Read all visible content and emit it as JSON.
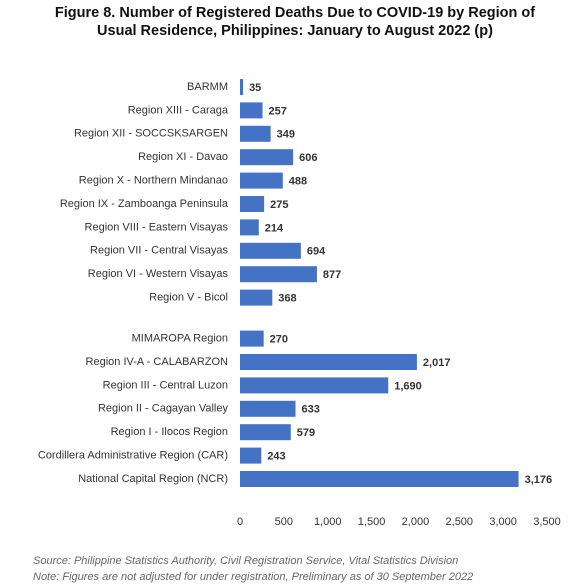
{
  "chart_data": {
    "type": "barh",
    "title": "Figure 8. Number of Registered Deaths Due to COVID-19 by Region of Usual Residence, Philippines: January to August 2022 (p)",
    "categories": [
      "BARMM",
      "Region XIII - Caraga",
      "Region XII - SOCCSKSARGEN",
      "Region XI - Davao",
      "Region X - Northern Mindanao",
      "Region IX - Zamboanga Peninsula",
      "Region VIII - Eastern Visayas",
      "Region VII - Central Visayas",
      "Region VI - Western Visayas",
      "Region V - Bicol",
      "MIMAROPA Region",
      "Region IV-A - CALABARZON",
      "Region III - Central Luzon",
      "Region II - Cagayan Valley",
      "Region I - Ilocos Region",
      "Cordillera Administrative Region (CAR)",
      "National Capital Region (NCR)"
    ],
    "values": [
      35,
      257,
      349,
      606,
      488,
      275,
      214,
      694,
      877,
      368,
      270,
      2017,
      1690,
      633,
      579,
      243,
      3176
    ],
    "value_labels": [
      "35",
      "257",
      "349",
      "606",
      "488",
      "275",
      "214",
      "694",
      "877",
      "368",
      "270",
      "2,017",
      "1,690",
      "633",
      "579",
      "243",
      "3,176"
    ],
    "value_label_colors": [
      "#222222",
      "#222222",
      "#222222",
      "#222222",
      "#222222",
      "#222222",
      "#222222",
      "#222222",
      "#222222",
      "#e00000",
      "#222222",
      "#222222",
      "#222222",
      "#222222",
      "#222222",
      "#222222",
      "#222222"
    ],
    "color": "#4472c4",
    "xlim": [
      0,
      3500
    ],
    "xticks": [
      0,
      500,
      {
        "value": 1000,
        "label": "1,000"
      },
      {
        "value": 1500,
        "label": "1,500"
      },
      {
        "value": 2000,
        "label": "2,000"
      },
      {
        "value": 2500,
        "label": "2,500"
      },
      {
        "value": 3000,
        "label": "3,000"
      },
      {
        "value": 3500,
        "label": "3,500"
      }
    ],
    "source": "Source: Philippine Statistics Authority, Civil Registration Service, Vital Statistics Division",
    "note": "Note: Figures are not adjusted for under registration, Preliminary as of 30 September 2022"
  }
}
